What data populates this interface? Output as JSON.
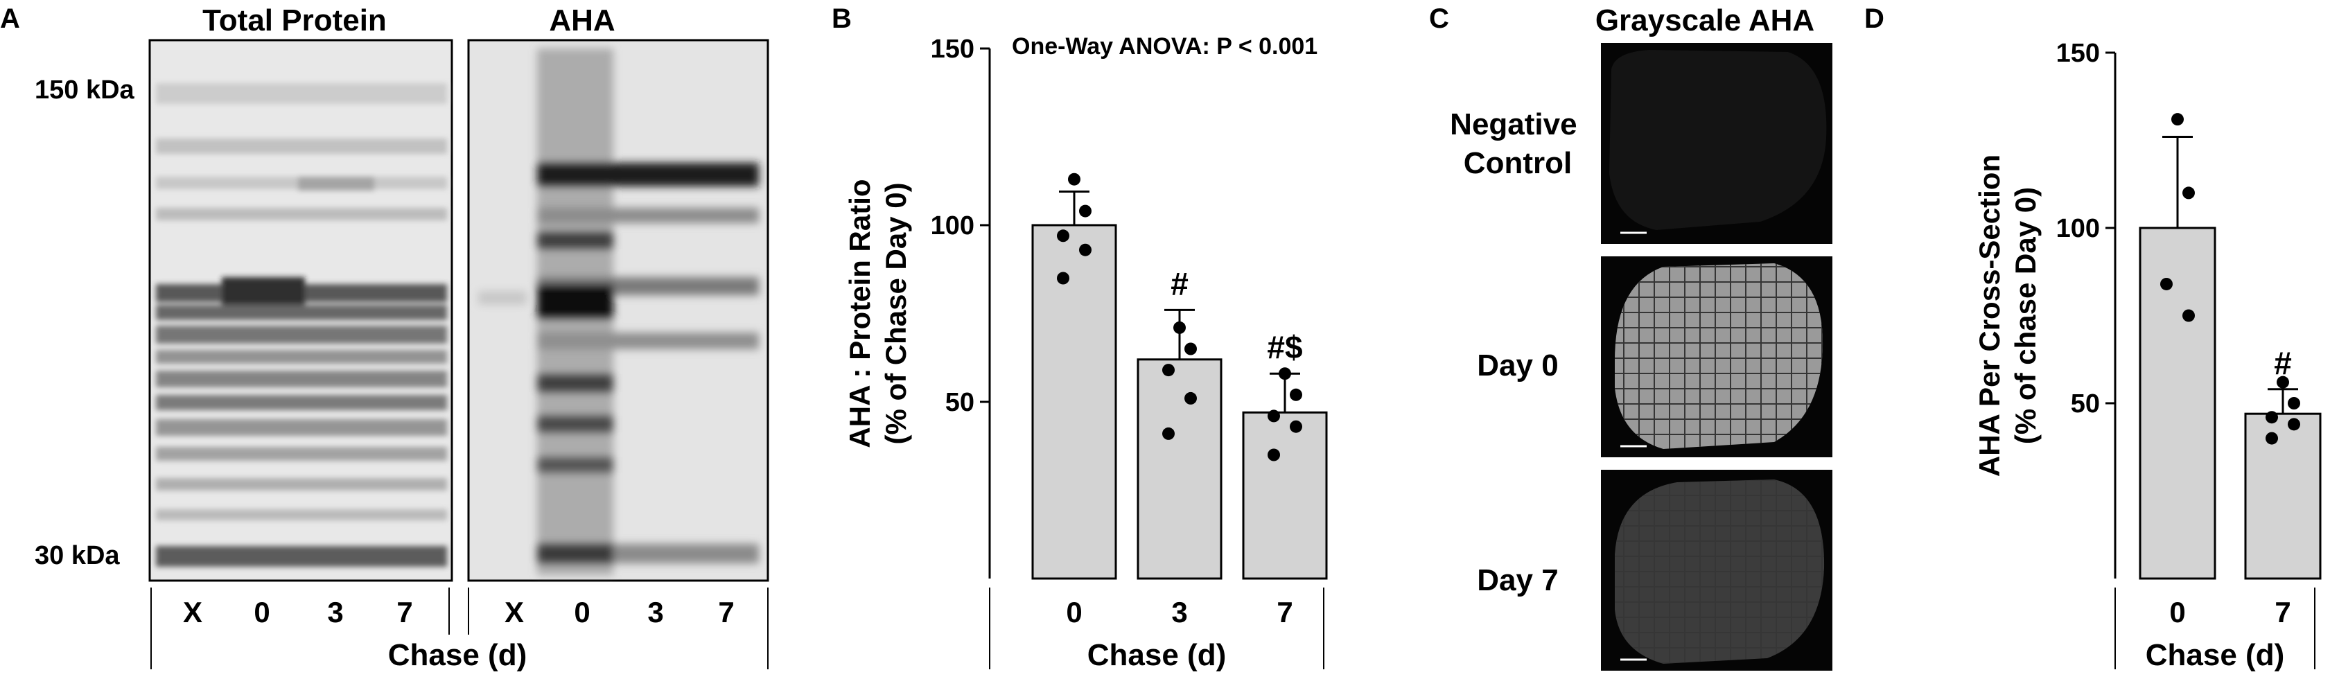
{
  "panels": {
    "a": {
      "letter": "A",
      "title_left": "Total Protein",
      "title_right": "AHA",
      "marker_high": "150 kDa",
      "marker_low": "30 kDa",
      "lanes_left": [
        "X",
        "0",
        "3",
        "7"
      ],
      "lanes_right": [
        "X",
        "0",
        "3",
        "7"
      ],
      "xlabel": "Chase (d)"
    },
    "b": {
      "letter": "B",
      "annotation": "One-Way ANOVA:  P < 0.001"
    },
    "c": {
      "letter": "C",
      "title": "Grayscale AHA",
      "rows": [
        "Negative\nControl",
        "Day 0",
        "Day 7"
      ],
      "row_lines": [
        [
          "Negative",
          "Control"
        ],
        [
          "Day 0"
        ],
        [
          "Day 7"
        ]
      ]
    },
    "d": {
      "letter": "D"
    }
  },
  "chart_data": [
    {
      "id": "B",
      "type": "bar",
      "categories": [
        "0",
        "3",
        "7"
      ],
      "values": [
        100,
        62,
        47
      ],
      "errors": [
        9.5,
        14,
        11
      ],
      "points": [
        [
          113,
          104,
          97,
          93,
          85
        ],
        [
          71,
          65,
          59,
          51,
          41
        ],
        [
          58,
          52,
          46,
          43,
          35
        ]
      ],
      "annotations": [
        "",
        "#",
        "#$"
      ],
      "ylabel_line1": "AHA : Protein Ratio",
      "ylabel_line2": "(% of Chase Day 0)",
      "yticks": [
        50,
        100,
        150
      ],
      "ylim": [
        0,
        150
      ],
      "xlabel": "Chase (d)"
    },
    {
      "id": "D",
      "type": "bar",
      "categories": [
        "0",
        "7"
      ],
      "values": [
        100,
        47
      ],
      "errors": [
        26,
        7
      ],
      "points": [
        [
          131,
          110,
          84,
          75
        ],
        [
          56,
          50,
          46,
          44,
          40
        ]
      ],
      "annotations": [
        "",
        "#"
      ],
      "ylabel_line1": "AHA Per Cross-Section",
      "ylabel_line2": "(% of chase Day 0)",
      "yticks": [
        50,
        100,
        150
      ],
      "ylim": [
        0,
        150
      ],
      "xlabel": "Chase (d)"
    }
  ],
  "colors": {
    "bar_fill": "#d3d3d3",
    "axis": "#000000",
    "blot_bg": "#e6e6e6",
    "tissue_bg": "#050505"
  }
}
